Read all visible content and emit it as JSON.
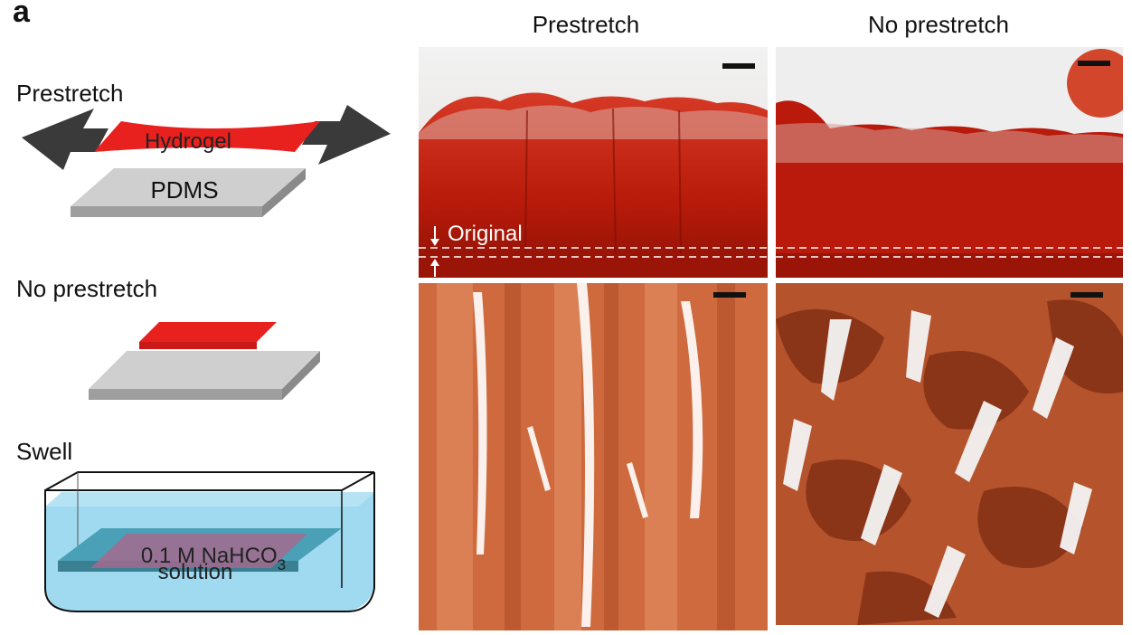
{
  "figure": {
    "panel_letter": "a",
    "left_schematic": {
      "prestretch_label": "Prestretch",
      "hydrogel_label": "Hydrogel",
      "pdms_label": "PDMS",
      "no_prestretch_label": "No prestretch",
      "swell_label": "Swell",
      "solution_label_line1": "0.1 M NaHCO",
      "solution_label_sub": "3",
      "solution_label_line2": "solution"
    },
    "columns": {
      "prestretch_header": "Prestretch",
      "no_prestretch_header": "No prestretch"
    },
    "annotations": {
      "original_label": "Original"
    },
    "colors": {
      "hydrogel_red": "#e8211f",
      "pdms_gray": "#c8c8c8",
      "arrow_dark": "#3a3a3a",
      "water_blue": "#8fd3ee",
      "photo_red": "#c21d0c",
      "photo_orange": "#cf6a3e",
      "photo_brown": "#8a3418"
    }
  }
}
